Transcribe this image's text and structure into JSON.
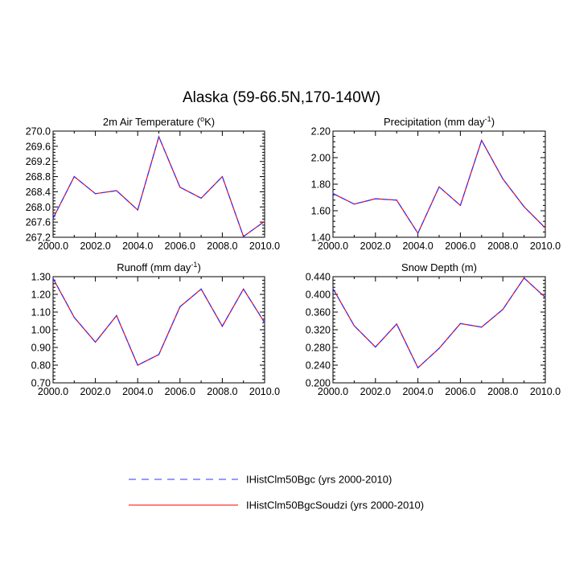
{
  "title": "Alaska (59-66.5N,170-140W)",
  "legend": [
    {
      "label": "IHistClm50Bgc (yrs 2000-2010)",
      "color": "#3333ff",
      "style": "dashed"
    },
    {
      "label": "IHistClm50BgcSoudzi (yrs 2000-2010)",
      "color": "#ff0000",
      "style": "solid"
    }
  ],
  "chart_data": [
    {
      "type": "line",
      "title_main": "2m Air Temperature (",
      "title_sup": "o",
      "title_end": "K)",
      "x": [
        2000,
        2001,
        2002,
        2003,
        2004,
        2005,
        2006,
        2007,
        2008,
        2009,
        2010
      ],
      "xlim": [
        2000,
        2010
      ],
      "xticks": [
        "2000.0",
        "2002.0",
        "2004.0",
        "2006.0",
        "2008.0",
        "2010.0"
      ],
      "ylim": [
        267.2,
        270.0
      ],
      "yticks": [
        "267.2",
        "267.6",
        "268.0",
        "268.4",
        "268.8",
        "269.2",
        "269.6",
        "270.0"
      ],
      "series": [
        {
          "values": [
            267.7,
            268.8,
            268.35,
            268.43,
            267.92,
            269.85,
            268.52,
            268.23,
            268.8,
            267.22,
            267.62
          ]
        },
        {
          "values": [
            267.7,
            268.8,
            268.35,
            268.43,
            267.92,
            269.85,
            268.52,
            268.23,
            268.8,
            267.22,
            267.62
          ]
        }
      ]
    },
    {
      "type": "line",
      "title_main": "Precipitation (mm day",
      "title_sup": "-1",
      "title_end": ")",
      "x": [
        2000,
        2001,
        2002,
        2003,
        2004,
        2005,
        2006,
        2007,
        2008,
        2009,
        2010
      ],
      "xlim": [
        2000,
        2010
      ],
      "xticks": [
        "2000.0",
        "2002.0",
        "2004.0",
        "2006.0",
        "2008.0",
        "2010.0"
      ],
      "ylim": [
        1.4,
        2.2
      ],
      "yticks": [
        "1.40",
        "1.60",
        "1.80",
        "2.00",
        "2.20"
      ],
      "series": [
        {
          "values": [
            1.73,
            1.65,
            1.69,
            1.68,
            1.43,
            1.78,
            1.64,
            2.13,
            1.84,
            1.63,
            1.47
          ]
        },
        {
          "values": [
            1.73,
            1.65,
            1.69,
            1.68,
            1.43,
            1.78,
            1.64,
            2.13,
            1.84,
            1.63,
            1.47
          ]
        }
      ]
    },
    {
      "type": "line",
      "title_main": "Runoff (mm day",
      "title_sup": "-1",
      "title_end": ")",
      "x": [
        2000,
        2001,
        2002,
        2003,
        2004,
        2005,
        2006,
        2007,
        2008,
        2009,
        2010
      ],
      "xlim": [
        2000,
        2010
      ],
      "xticks": [
        "2000.0",
        "2002.0",
        "2004.0",
        "2006.0",
        "2008.0",
        "2010.0"
      ],
      "ylim": [
        0.7,
        1.3
      ],
      "yticks": [
        "0.70",
        "0.80",
        "0.90",
        "1.00",
        "1.10",
        "1.20",
        "1.30"
      ],
      "series": [
        {
          "values": [
            1.29,
            1.07,
            0.93,
            1.08,
            0.8,
            0.86,
            1.13,
            1.23,
            1.02,
            1.23,
            1.04
          ]
        },
        {
          "values": [
            1.29,
            1.07,
            0.93,
            1.08,
            0.8,
            0.86,
            1.13,
            1.23,
            1.02,
            1.23,
            1.04
          ]
        }
      ]
    },
    {
      "type": "line",
      "title_main": "Snow Depth (m)",
      "title_sup": "",
      "title_end": "",
      "x": [
        2000,
        2001,
        2002,
        2003,
        2004,
        2005,
        2006,
        2007,
        2008,
        2009,
        2010
      ],
      "xlim": [
        2000,
        2010
      ],
      "xticks": [
        "2000.0",
        "2002.0",
        "2004.0",
        "2006.0",
        "2008.0",
        "2010.0"
      ],
      "ylim": [
        0.2,
        0.44
      ],
      "yticks": [
        "0.200",
        "0.240",
        "0.280",
        "0.320",
        "0.360",
        "0.400",
        "0.440"
      ],
      "series": [
        {
          "values": [
            0.413,
            0.329,
            0.281,
            0.333,
            0.234,
            0.278,
            0.334,
            0.326,
            0.366,
            0.437,
            0.393
          ]
        },
        {
          "values": [
            0.413,
            0.329,
            0.281,
            0.333,
            0.234,
            0.278,
            0.334,
            0.326,
            0.366,
            0.437,
            0.393
          ]
        }
      ]
    }
  ]
}
